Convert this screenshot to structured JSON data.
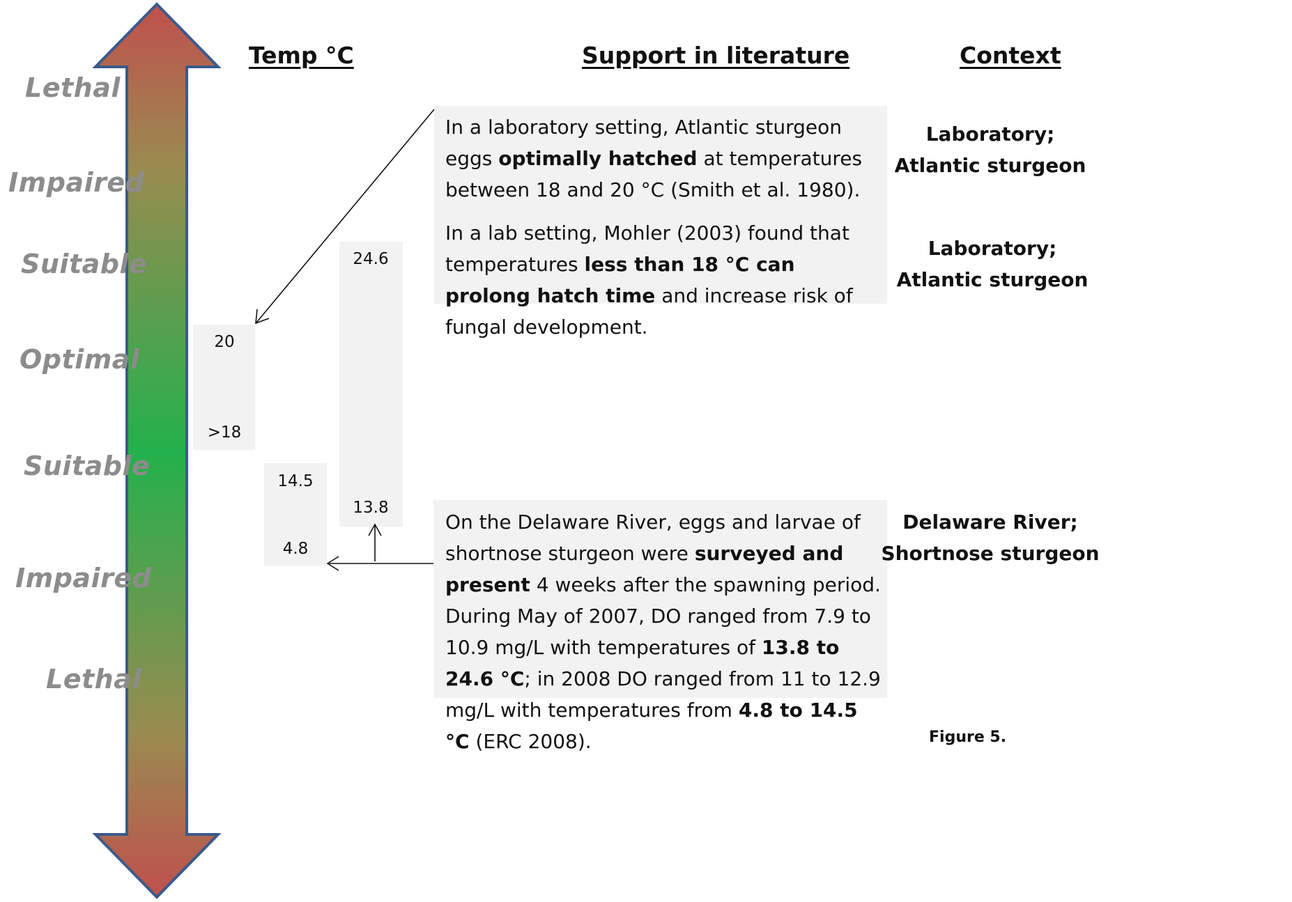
{
  "scale_labels": {
    "lethal_top": "Lethal",
    "impaired_top": "Impaired",
    "suitable_top": "Suitable",
    "optimal": "Optimal",
    "suitable_bottom": "Suitable",
    "impaired_bottom": "Impaired",
    "lethal_bottom": "Lethal"
  },
  "headers": {
    "temp": "Temp °C",
    "support": "Support in literature",
    "context": "Context"
  },
  "temp_boxes": {
    "box_optimal": {
      "high": "20",
      "low": ">18"
    },
    "box_2008": {
      "high": "14.5",
      "low": "4.8"
    },
    "box_2007": {
      "high": "24.6",
      "low": "13.8"
    }
  },
  "literature": {
    "lab_smith": {
      "part1": "In a laboratory setting, Atlantic sturgeon eggs ",
      "bold1": "optimally hatched",
      "part2": " at temperatures between 18 and 20 °C (Smith et al. 1980)."
    },
    "lab_mohler": {
      "part1": "In a lab setting, Mohler (2003) found that temperatures ",
      "bold1": "less than 18 °C can prolong hatch time",
      "part2": " and increase risk of  fungal development."
    },
    "delaware": {
      "part1": "On the Delaware River, eggs and larvae of shortnose sturgeon were ",
      "bold1": "surveyed and present",
      "part2": " 4 weeks after the spawning period.  During May of 2007, DO ranged from 7.9 to 10.9 mg/L with temperatures of ",
      "bold2": "13.8 to 24.6 °C",
      "part3": "; in 2008 DO ranged from 11 to 12.9 mg/L with temperatures from ",
      "bold3": "4.8 to 14.5 °C",
      "part4": " (ERC 2008)."
    }
  },
  "context": {
    "smith": {
      "line1": "Laboratory;",
      "line2": "Atlantic sturgeon"
    },
    "mohler": {
      "line1": "Laboratory;",
      "line2": "Atlantic sturgeon"
    },
    "delaware": {
      "line1": "Delaware River;",
      "line2": "Shortnose sturgeon"
    }
  },
  "figure_label": "Figure 5.",
  "colors": {
    "arrow_end": "#c0504d",
    "arrow_mid": "#8f8a52",
    "arrow_center": "#22b14c",
    "arrow_outline": "#3a5a8c",
    "box_fill": "#f1f2f1",
    "zone_text": "#8c8c8c"
  }
}
